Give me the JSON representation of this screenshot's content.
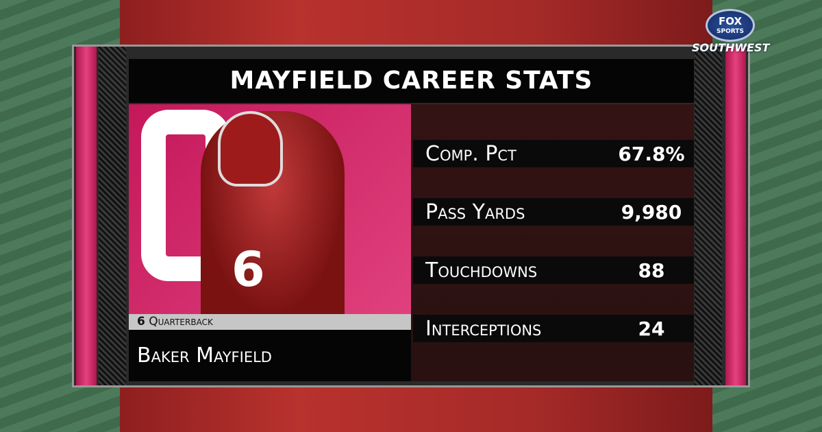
{
  "broadcaster": {
    "logo_text_top": "FOX",
    "logo_text_mid": "SPORTS",
    "logo_text_bottom": "SOUTHWEST"
  },
  "graphic": {
    "title": "MAYFIELD CAREER STATS",
    "player": {
      "number": "6",
      "position": "Quarterback",
      "name": "Baker Mayfield",
      "jersey_number": "6"
    },
    "stats": [
      {
        "label": "Comp. Pct",
        "value": "67.8%"
      },
      {
        "label": "Pass Yards",
        "value": "9,980"
      },
      {
        "label": "Touchdowns",
        "value": "88"
      },
      {
        "label": "Interceptions",
        "value": "24"
      }
    ]
  },
  "colors": {
    "accent_pink": "#d62a6a",
    "crimson": "#9e1b1b"
  }
}
